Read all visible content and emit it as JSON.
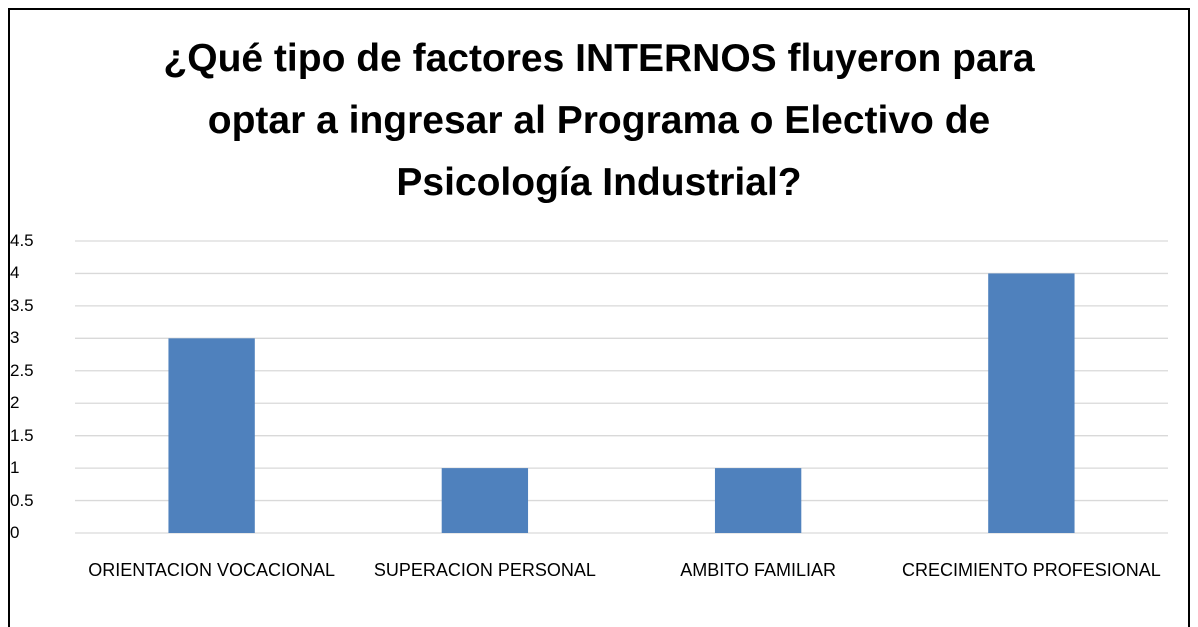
{
  "chart_data": {
    "type": "bar",
    "title": "¿Qué tipo de factores INTERNOS fluyeron para optar a ingresar al Programa o Electivo de Psicología Industrial?",
    "categories": [
      "ORIENTACION VOCACIONAL",
      "SUPERACION PERSONAL",
      "AMBITO FAMILIAR",
      "CRECIMIENTO PROFESIONAL"
    ],
    "values": [
      3,
      1,
      1,
      4
    ],
    "color": "#4f81bd",
    "ylim": [
      0,
      4.5
    ],
    "yticks": [
      0,
      0.5,
      1,
      1.5,
      2,
      2.5,
      3,
      3.5,
      4,
      4.5
    ],
    "grid": true
  }
}
